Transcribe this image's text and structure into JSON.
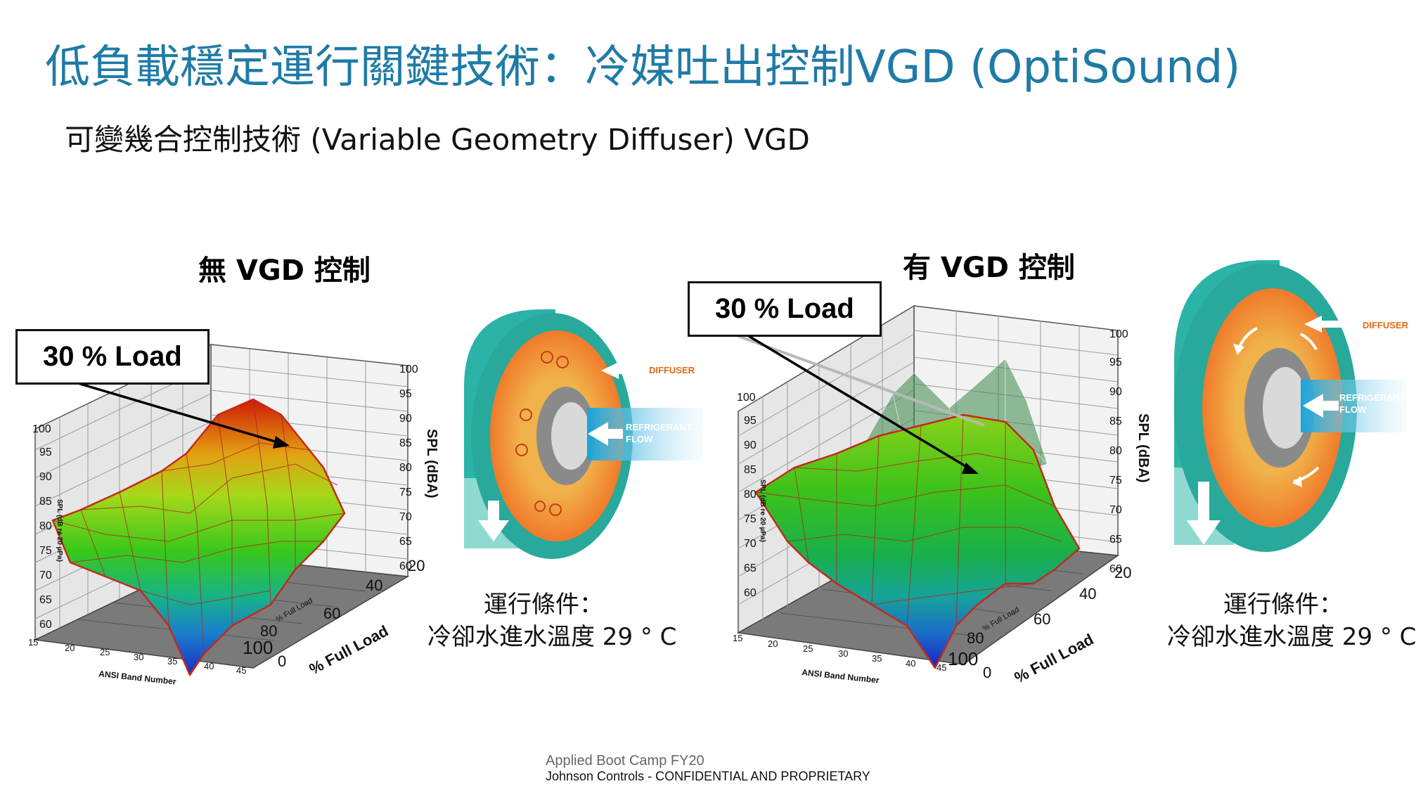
{
  "slide": {
    "title": "低負載穩定運行關鍵技術：冷媒吐出控制VGD (OptiSound)",
    "subtitle": "可變幾合控制技術 (Variable Geometry Diffuser) VGD",
    "footer": {
      "line1": "Applied Boot Camp FY20",
      "line2": "Johnson Controls - CONFIDENTIAL AND PROPRIETARY"
    }
  },
  "left_panel": {
    "heading": "無 VGD 控制",
    "load_label": "30 % Load",
    "condition_line1": "運行條件：",
    "condition_line2": "冷卻水進水溫度 29 ° C",
    "diagram": {
      "diffuser_label": "DIFFUSER",
      "flow_label_1": "REFRIGERANT",
      "flow_label_2": "FLOW"
    }
  },
  "right_panel": {
    "heading": "有 VGD 控制",
    "load_label": "30 % Load",
    "condition_line1": "運行條件：",
    "condition_line2": "冷卻水進水溫度 29 ° C",
    "diagram": {
      "diffuser_label": "DIFFUSER",
      "flow_label_1": "REFRIGERANT",
      "flow_label_2": "FLOW"
    }
  },
  "chart_data": [
    {
      "type": "surface",
      "title": "",
      "zlabel": "SPL (dBA)",
      "xlabel": "ANSI Band Number",
      "ylabel": "% Full Load",
      "ylabel_small": "% Full Load",
      "zlabel_small": "SPL (dB re 20 µPa)",
      "z_ticks": [
        "60",
        "65",
        "70",
        "75",
        "80",
        "85",
        "90",
        "95",
        "100"
      ],
      "z_ticks_right": [
        "60",
        "65",
        "70",
        "75",
        "80",
        "85",
        "90",
        "95",
        "100"
      ],
      "x_ticks": [
        "15",
        "20",
        "25",
        "30",
        "35",
        "40",
        "45"
      ],
      "y_ticks": [
        "0",
        "20",
        "40",
        "60",
        "80",
        "100"
      ],
      "colors": {
        "high": "#cc1a0a",
        "mid": "#4ccd14",
        "low": "#1e3cc8",
        "edge": "#c22a1a"
      }
    },
    {
      "type": "surface",
      "title": "",
      "zlabel": "SPL (dBA)",
      "xlabel": "ANSI Band Number",
      "ylabel": "% Full Load",
      "ylabel_small": "% Full Load",
      "zlabel_small": "SPL (dB re 20 µPa)",
      "z_ticks": [
        "60",
        "65",
        "70",
        "75",
        "80",
        "85",
        "90",
        "95",
        "100"
      ],
      "z_ticks_right": [
        "60",
        "65",
        "70",
        "75",
        "80",
        "85",
        "90",
        "95",
        "100"
      ],
      "x_ticks": [
        "15",
        "20",
        "25",
        "30",
        "35",
        "40",
        "45"
      ],
      "y_ticks": [
        "0",
        "20",
        "40",
        "60",
        "80",
        "100"
      ],
      "colors": {
        "high": "#1a9a1a",
        "mid": "#2cae50",
        "low": "#1a2ec8",
        "ghost": "#3b8a4c",
        "edge": "#c22a1a"
      }
    }
  ]
}
